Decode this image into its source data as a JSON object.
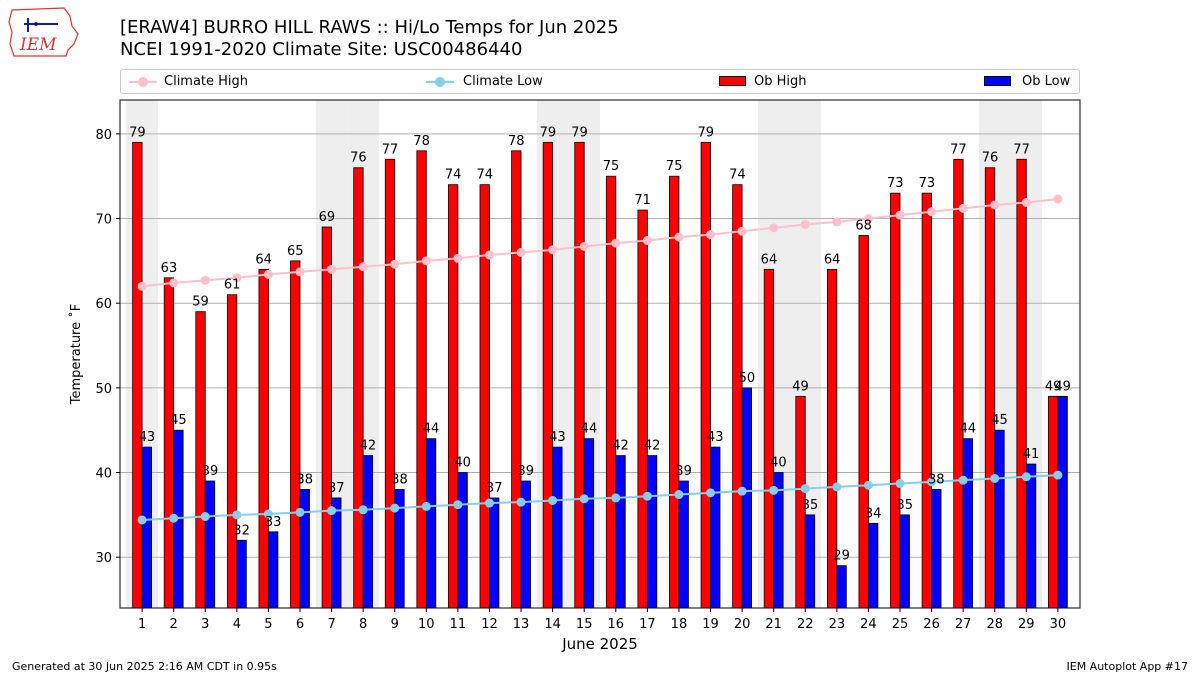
{
  "header": {
    "title_line1": "[ERAW4] BURRO HILL RAWS :: Hi/Lo Temps for Jun 2025",
    "title_line2": "NCEI 1991-2020 Climate Site: USC00486440",
    "logo_text": "IEM"
  },
  "legend": {
    "climate_high": "Climate High",
    "climate_low": "Climate Low",
    "ob_high": "Ob High",
    "ob_low": "Ob Low"
  },
  "footer": {
    "generated": "Generated at 30 Jun 2025 2:16 AM CDT in 0.95s",
    "app": "IEM Autoplot App #17"
  },
  "colors": {
    "ob_high": "#ff0000",
    "ob_low": "#0000ff",
    "climate_high": "#ffc0cb",
    "climate_low": "#87ceeb",
    "weekend_shade": "#eeeeee",
    "grid": "#b0b0b0"
  },
  "chart_data": {
    "type": "bar",
    "xlabel": "June 2025",
    "ylabel": "Temperature ˚F",
    "ylim": [
      24,
      84
    ],
    "yticks": [
      30,
      40,
      50,
      60,
      70,
      80
    ],
    "grid": "horizontal",
    "categories": [
      "1",
      "2",
      "3",
      "4",
      "5",
      "6",
      "7",
      "8",
      "9",
      "10",
      "11",
      "12",
      "13",
      "14",
      "15",
      "16",
      "17",
      "18",
      "19",
      "20",
      "21",
      "22",
      "23",
      "24",
      "25",
      "26",
      "27",
      "28",
      "29",
      "30"
    ],
    "weekend_days": [
      1,
      7,
      8,
      14,
      15,
      21,
      22,
      28,
      29
    ],
    "series": [
      {
        "name": "Ob High",
        "kind": "bar",
        "values": [
          79,
          63,
          59,
          61,
          64,
          65,
          69,
          76,
          77,
          78,
          74,
          74,
          78,
          79,
          79,
          75,
          71,
          75,
          79,
          74,
          64,
          49,
          64,
          68,
          73,
          73,
          77,
          76,
          77,
          49
        ]
      },
      {
        "name": "Ob Low",
        "kind": "bar",
        "values": [
          43,
          45,
          39,
          32,
          33,
          38,
          37,
          42,
          38,
          44,
          40,
          37,
          39,
          43,
          44,
          42,
          42,
          39,
          43,
          50,
          40,
          35,
          29,
          34,
          35,
          38,
          44,
          45,
          41,
          49
        ]
      },
      {
        "name": "Climate High",
        "kind": "line",
        "values": [
          62.0,
          62.4,
          62.7,
          63.0,
          63.4,
          63.7,
          64.0,
          64.3,
          64.6,
          65.0,
          65.3,
          65.7,
          66.0,
          66.3,
          66.7,
          67.1,
          67.4,
          67.8,
          68.1,
          68.5,
          68.9,
          69.3,
          69.6,
          70.0,
          70.4,
          70.8,
          71.2,
          71.6,
          71.9,
          72.3
        ]
      },
      {
        "name": "Climate Low",
        "kind": "line",
        "values": [
          34.4,
          34.6,
          34.8,
          35.0,
          35.1,
          35.3,
          35.5,
          35.6,
          35.8,
          36.0,
          36.2,
          36.4,
          36.5,
          36.7,
          36.9,
          37.0,
          37.2,
          37.4,
          37.6,
          37.8,
          37.9,
          38.1,
          38.3,
          38.5,
          38.7,
          38.9,
          39.1,
          39.3,
          39.5,
          39.7
        ]
      }
    ]
  }
}
